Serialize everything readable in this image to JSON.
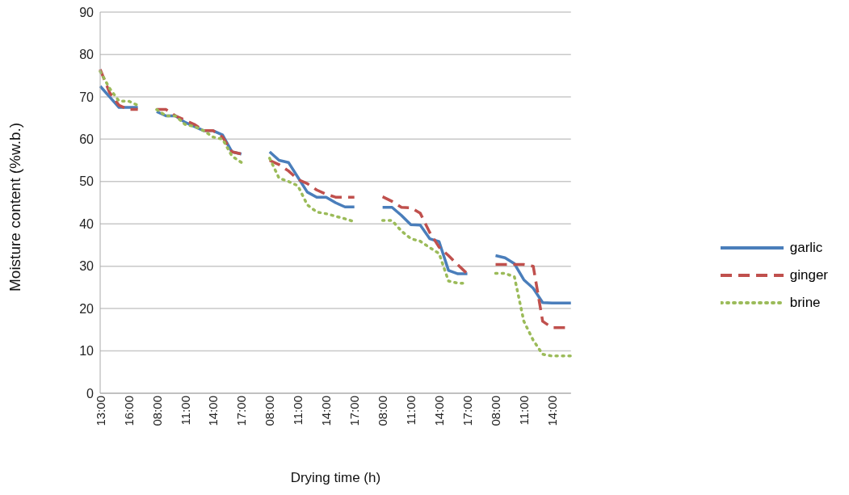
{
  "chart_data": {
    "type": "line",
    "xlabel": "Drying time (h)",
    "ylabel": "Moisture content (%w.b.)",
    "categories": [
      "13:00",
      null,
      null,
      "16:00",
      null,
      null,
      "08:00",
      null,
      null,
      "11:00",
      null,
      null,
      "14:00",
      null,
      null,
      "17:00",
      null,
      null,
      "08:00",
      null,
      null,
      "11:00",
      null,
      null,
      "14:00",
      null,
      null,
      "17:00",
      null,
      null,
      "08:00",
      null,
      null,
      "11:00",
      null,
      null,
      "14:00",
      null,
      null,
      "17:00",
      null,
      null,
      "08:00",
      null,
      null,
      "11:00",
      null,
      null,
      "14:00",
      null,
      null
    ],
    "series": [
      {
        "name": "garlic",
        "color": "#4a7ebb",
        "line_style": "solid",
        "values": [
          72.5,
          70,
          67.5,
          67.5,
          67.5,
          null,
          66.5,
          65.5,
          65.5,
          64,
          63,
          62,
          62,
          61,
          57,
          56.5,
          null,
          null,
          57,
          55,
          54.5,
          51,
          47.5,
          46.3,
          46.3,
          45,
          44,
          44,
          null,
          null,
          43.9,
          43.9,
          42,
          39.8,
          39.7,
          36.5,
          35.8,
          29,
          28.2,
          28.2,
          null,
          null,
          32.5,
          32,
          30.6,
          26.8,
          24.8,
          21.4,
          21.3,
          21.3,
          21.3
        ]
      },
      {
        "name": "ginger",
        "color": "#c0504d",
        "line_style": "dashed",
        "values": [
          76.5,
          71,
          68,
          67,
          67,
          null,
          67,
          67,
          65.5,
          64.5,
          63.5,
          62,
          62,
          60.5,
          57,
          56.5,
          null,
          null,
          55,
          54,
          52.5,
          50.5,
          49.5,
          48,
          47,
          46.3,
          46.3,
          46.3,
          null,
          null,
          46.4,
          45.3,
          43.9,
          43.8,
          42.5,
          38,
          34.5,
          32.5,
          30.3,
          28.2,
          null,
          null,
          30.4,
          30.4,
          30.4,
          30.4,
          30,
          17,
          15.5,
          15.5,
          15.5
        ]
      },
      {
        "name": "brine",
        "color": "#9bbb59",
        "line_style": "dotted",
        "values": [
          76,
          72,
          69,
          69,
          68,
          null,
          67,
          65.5,
          65.5,
          63.5,
          63,
          62,
          60.5,
          60,
          56,
          54.5,
          null,
          null,
          55.5,
          50.8,
          50,
          49,
          44.5,
          42.8,
          42.4,
          41.8,
          41.2,
          40.5,
          null,
          null,
          40.8,
          40.8,
          38.3,
          36.5,
          35.9,
          34.4,
          33,
          26.5,
          26,
          26,
          null,
          null,
          28.3,
          28.3,
          27.5,
          17,
          12.5,
          9.2,
          8.8,
          8.8,
          8.8
        ]
      }
    ],
    "ylim": [
      0,
      90
    ],
    "yticks": [
      0,
      10,
      20,
      30,
      40,
      50,
      60,
      70,
      80,
      90
    ],
    "grid": "y",
    "legend": "right"
  }
}
